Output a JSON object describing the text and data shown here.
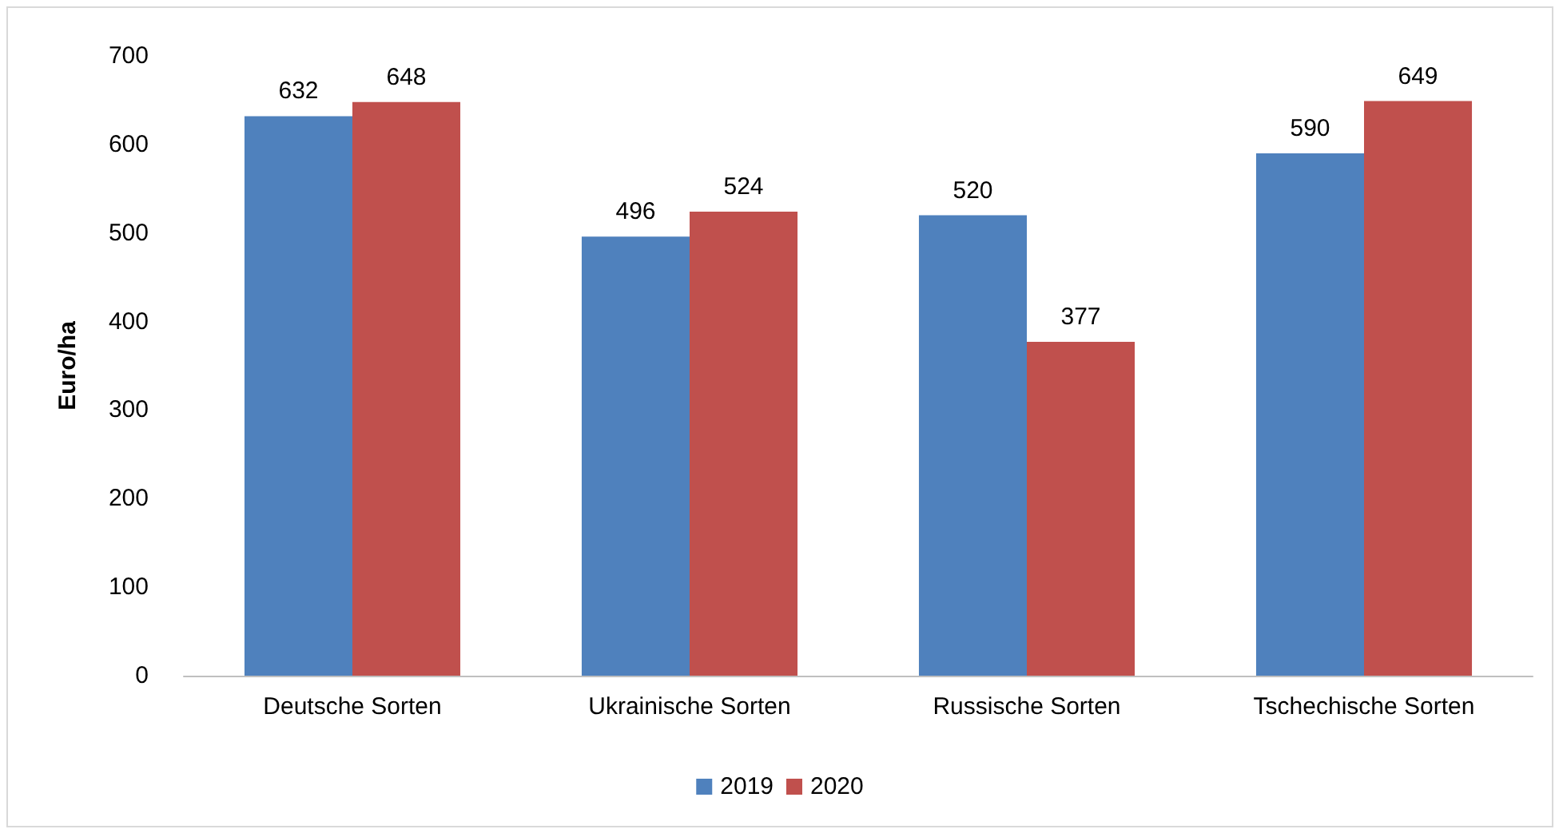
{
  "chart_data": {
    "type": "bar",
    "ylabel": "Euro/ha",
    "categories": [
      "Deutsche Sorten",
      "Ukrainische Sorten",
      "Russische Sorten",
      "Tschechische Sorten"
    ],
    "series": [
      {
        "name": "2019",
        "color": "#4f81bd",
        "values": [
          632,
          496,
          520,
          590
        ]
      },
      {
        "name": "2020",
        "color": "#c0504d",
        "values": [
          648,
          524,
          377,
          649
        ]
      }
    ],
    "ylim": [
      0,
      700
    ],
    "yticks": [
      0,
      100,
      200,
      300,
      400,
      500,
      600,
      700
    ],
    "data_labels": true,
    "legend": "bottom"
  }
}
